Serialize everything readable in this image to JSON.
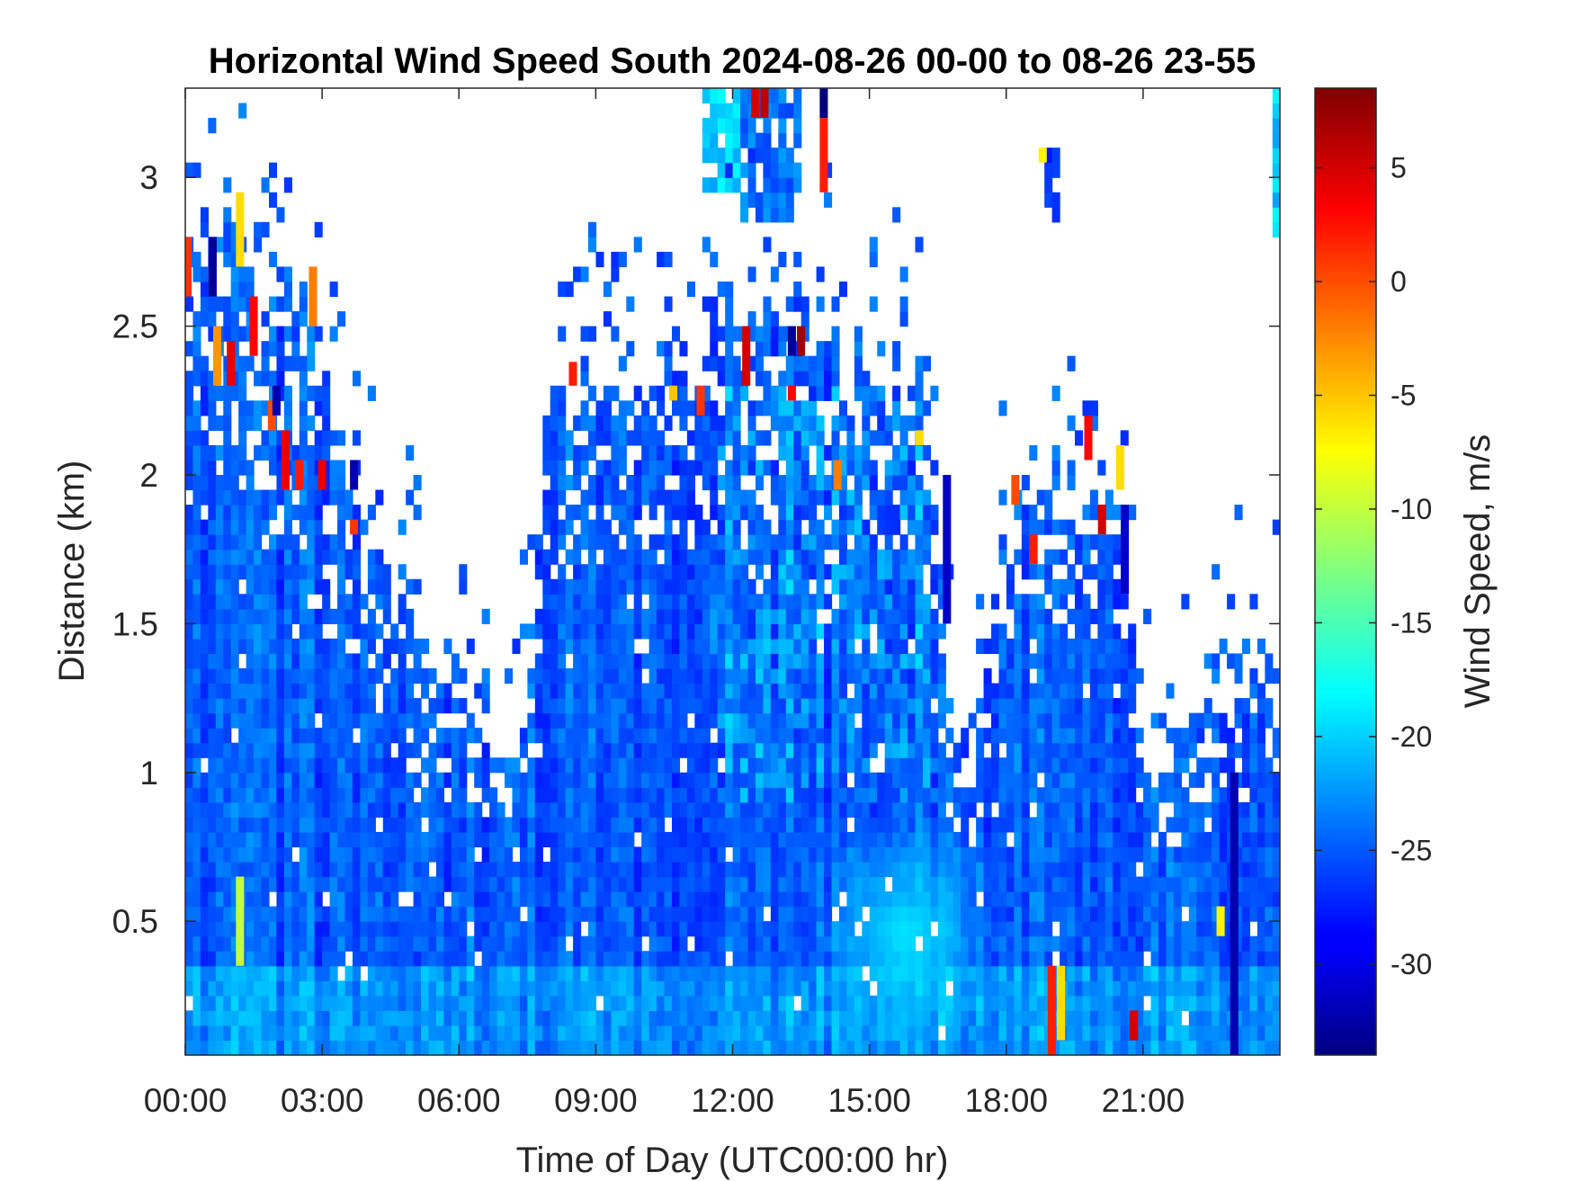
{
  "chart_data": {
    "type": "heatmap",
    "title": "Horizontal Wind Speed South 2024-08-26 00-00 to 08-26 23-55",
    "xlabel": "Time of Day (UTC00:00 hr)",
    "ylabel": "Distance (km)",
    "colorbar_label": "Wind Speed, m/s",
    "colormap": "jet",
    "xlim_hours": [
      0,
      24
    ],
    "ylim_km": [
      0.05,
      3.3
    ],
    "clim": [
      -34,
      8.5
    ],
    "x_ticks": [
      {
        "value": 0,
        "label": "00:00"
      },
      {
        "value": 3,
        "label": "03:00"
      },
      {
        "value": 6,
        "label": "06:00"
      },
      {
        "value": 9,
        "label": "09:00"
      },
      {
        "value": 12,
        "label": "12:00"
      },
      {
        "value": 15,
        "label": "15:00"
      },
      {
        "value": 18,
        "label": "18:00"
      },
      {
        "value": 21,
        "label": "21:00"
      }
    ],
    "y_ticks": [
      {
        "value": 0.5,
        "label": "0.5"
      },
      {
        "value": 1,
        "label": "1"
      },
      {
        "value": 1.5,
        "label": "1.5"
      },
      {
        "value": 2,
        "label": "2"
      },
      {
        "value": 2.5,
        "label": "2.5"
      },
      {
        "value": 3,
        "label": "3"
      }
    ],
    "colorbar_ticks": [
      {
        "value": 5,
        "label": "5"
      },
      {
        "value": 0,
        "label": "0"
      },
      {
        "value": -5,
        "label": "-5"
      },
      {
        "value": -10,
        "label": "-10"
      },
      {
        "value": -15,
        "label": "-15"
      },
      {
        "value": -20,
        "label": "-20"
      },
      {
        "value": -25,
        "label": "-25"
      },
      {
        "value": -30,
        "label": "-30"
      }
    ],
    "time_step_hours": 0.1667,
    "range_step_km": 0.05,
    "background_speed_ms": -25,
    "coverage_top_km": [
      {
        "t": 0.0,
        "top": 2.8
      },
      {
        "t": 1.0,
        "top": 2.9
      },
      {
        "t": 1.5,
        "top": 2.6
      },
      {
        "t": 2.5,
        "top": 2.7
      },
      {
        "t": 3.5,
        "top": 2.1
      },
      {
        "t": 4.5,
        "top": 1.7
      },
      {
        "t": 6.0,
        "top": 1.35
      },
      {
        "t": 7.0,
        "top": 1.0
      },
      {
        "t": 7.5,
        "top": 1.35
      },
      {
        "t": 8.0,
        "top": 2.3
      },
      {
        "t": 9.0,
        "top": 2.3
      },
      {
        "t": 10.0,
        "top": 2.3
      },
      {
        "t": 11.0,
        "top": 2.4
      },
      {
        "t": 12.0,
        "top": 2.55
      },
      {
        "t": 13.0,
        "top": 2.55
      },
      {
        "t": 14.0,
        "top": 2.5
      },
      {
        "t": 15.0,
        "top": 2.4
      },
      {
        "t": 16.0,
        "top": 2.4
      },
      {
        "t": 16.5,
        "top": 2.0
      },
      {
        "t": 16.8,
        "top": 1.1
      },
      {
        "t": 17.3,
        "top": 1.0
      },
      {
        "t": 18.0,
        "top": 1.8
      },
      {
        "t": 19.0,
        "top": 2.0
      },
      {
        "t": 20.0,
        "top": 1.9
      },
      {
        "t": 20.5,
        "top": 1.9
      },
      {
        "t": 21.0,
        "top": 1.0
      },
      {
        "t": 22.0,
        "top": 1.1
      },
      {
        "t": 23.0,
        "top": 1.3
      },
      {
        "t": 24.0,
        "top": 1.35
      }
    ],
    "low_speed_core": {
      "t_center": 15.8,
      "z_center_km": 0.45,
      "speed_ms": -19
    },
    "isolated_patches": [
      {
        "t0": 11.4,
        "t1": 12.2,
        "z0": 2.95,
        "z1": 3.3,
        "speed": -20
      },
      {
        "t0": 12.2,
        "t1": 13.5,
        "z0": 2.85,
        "z1": 3.3,
        "speed": -24
      },
      {
        "t0": 18.9,
        "t1": 19.1,
        "z0": 2.85,
        "z1": 3.1,
        "speed": -26
      },
      {
        "t0": 23.9,
        "t1": 24.1,
        "z0": 2.8,
        "z1": 3.3,
        "speed": -20
      }
    ],
    "hot_spots": [
      {
        "t": 0.05,
        "z0": 2.6,
        "z1": 2.8,
        "speed": 1
      },
      {
        "t": 0.7,
        "z0": 2.3,
        "z1": 2.5,
        "speed": -3
      },
      {
        "t": 1.0,
        "z0": 2.3,
        "z1": 2.45,
        "speed": 4
      },
      {
        "t": 1.2,
        "z0": 2.7,
        "z1": 2.95,
        "speed": -6
      },
      {
        "t": 1.5,
        "z0": 2.4,
        "z1": 2.6,
        "speed": 3
      },
      {
        "t": 1.9,
        "z0": 2.15,
        "z1": 2.25,
        "speed": 0
      },
      {
        "t": 2.2,
        "z0": 1.95,
        "z1": 2.15,
        "speed": 4
      },
      {
        "t": 2.5,
        "z0": 1.95,
        "z1": 2.05,
        "speed": 2
      },
      {
        "t": 2.8,
        "z0": 2.5,
        "z1": 2.7,
        "speed": -2
      },
      {
        "t": 3.0,
        "z0": 1.95,
        "z1": 2.05,
        "speed": 4
      },
      {
        "t": 3.7,
        "z0": 1.8,
        "z1": 1.85,
        "speed": 1
      },
      {
        "t": 1.2,
        "z0": 0.35,
        "z1": 0.65,
        "speed": -10
      },
      {
        "t": 8.5,
        "z0": 2.3,
        "z1": 2.38,
        "speed": 2
      },
      {
        "t": 10.7,
        "z0": 2.25,
        "z1": 2.3,
        "speed": -5
      },
      {
        "t": 11.3,
        "z0": 2.2,
        "z1": 2.3,
        "speed": 1
      },
      {
        "t": 12.3,
        "z0": 2.3,
        "z1": 2.5,
        "speed": 5
      },
      {
        "t": 12.5,
        "z0": 3.2,
        "z1": 3.3,
        "speed": 5
      },
      {
        "t": 12.7,
        "z0": 3.2,
        "z1": 3.3,
        "speed": 6
      },
      {
        "t": 13.3,
        "z0": 2.25,
        "z1": 2.3,
        "speed": 3
      },
      {
        "t": 13.5,
        "z0": 2.4,
        "z1": 2.5,
        "speed": 7
      },
      {
        "t": 14.0,
        "z0": 2.95,
        "z1": 3.2,
        "speed": 2
      },
      {
        "t": 14.3,
        "z0": 1.95,
        "z1": 2.05,
        "speed": -2
      },
      {
        "t": 16.1,
        "z0": 2.1,
        "z1": 2.15,
        "speed": -6
      },
      {
        "t": 18.2,
        "z0": 1.9,
        "z1": 2.0,
        "speed": 0
      },
      {
        "t": 18.6,
        "z0": 1.7,
        "z1": 1.8,
        "speed": 2
      },
      {
        "t": 18.8,
        "z0": 3.05,
        "z1": 3.1,
        "speed": -7
      },
      {
        "t": 19.0,
        "z0": 0.05,
        "z1": 0.35,
        "speed": 2
      },
      {
        "t": 19.2,
        "z0": 0.1,
        "z1": 0.35,
        "speed": -6
      },
      {
        "t": 19.8,
        "z0": 2.05,
        "z1": 2.2,
        "speed": 3
      },
      {
        "t": 20.1,
        "z0": 1.8,
        "z1": 1.9,
        "speed": 5
      },
      {
        "t": 20.5,
        "z0": 1.95,
        "z1": 2.1,
        "speed": -6
      },
      {
        "t": 20.8,
        "z0": 0.1,
        "z1": 0.2,
        "speed": 5
      },
      {
        "t": 22.7,
        "z0": 0.45,
        "z1": 0.55,
        "speed": -7
      }
    ],
    "cold_spots": [
      {
        "t": 0.6,
        "z0": 2.6,
        "z1": 2.8,
        "speed": -33
      },
      {
        "t": 2.0,
        "z0": 2.2,
        "z1": 2.3,
        "speed": -32
      },
      {
        "t": 3.7,
        "z0": 1.95,
        "z1": 2.05,
        "speed": -32
      },
      {
        "t": 13.3,
        "z0": 2.4,
        "z1": 2.5,
        "speed": -33
      },
      {
        "t": 14.0,
        "z0": 3.2,
        "z1": 3.3,
        "speed": -34
      },
      {
        "t": 16.7,
        "z0": 1.5,
        "z1": 2.0,
        "speed": -31
      },
      {
        "t": 20.6,
        "z0": 1.6,
        "z1": 1.9,
        "speed": -31
      },
      {
        "t": 23.0,
        "z0": 0.05,
        "z1": 1.0,
        "speed": -32
      }
    ]
  }
}
